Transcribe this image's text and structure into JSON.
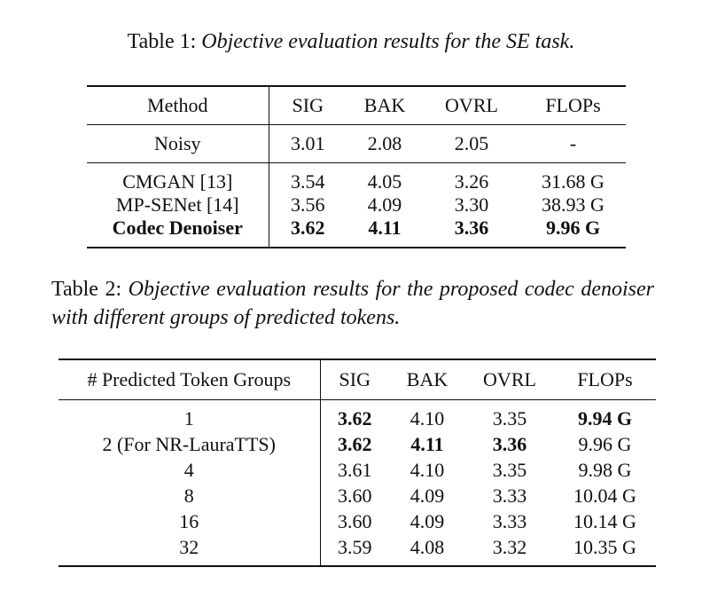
{
  "table1": {
    "caption_label": "Table 1: ",
    "caption_text": "Objective evaluation results for the SE task.",
    "headers": [
      "Method",
      "SIG",
      "BAK",
      "OVRL",
      "FLOPs"
    ],
    "noisy_row": [
      "Noisy",
      "3.01",
      "2.08",
      "2.05",
      "-"
    ],
    "rows": [
      [
        "CMGAN [13]",
        "3.54",
        "4.05",
        "3.26",
        "31.68 G"
      ],
      [
        "MP-SENet [14]",
        "3.56",
        "4.09",
        "3.30",
        "38.93 G"
      ],
      [
        "Codec Denoiser",
        "3.62",
        "4.11",
        "3.36",
        "9.96 G"
      ]
    ]
  },
  "table2": {
    "caption_label": "Table 2: ",
    "caption_text": "Objective evaluation results for the proposed codec denoiser with different groups of predicted tokens.",
    "headers": [
      "# Predicted Token Groups",
      "SIG",
      "BAK",
      "OVRL",
      "FLOPs"
    ],
    "rows": [
      [
        "1",
        "3.62",
        "4.10",
        "3.35",
        "9.94 G"
      ],
      [
        "2 (For NR-LauraTTS)",
        "3.62",
        "4.11",
        "3.36",
        "9.96 G"
      ],
      [
        "4",
        "3.61",
        "4.10",
        "3.35",
        "9.98 G"
      ],
      [
        "8",
        "3.60",
        "4.09",
        "3.33",
        "10.04 G"
      ],
      [
        "16",
        "3.60",
        "4.09",
        "3.33",
        "10.14 G"
      ],
      [
        "32",
        "3.59",
        "4.08",
        "3.32",
        "10.35 G"
      ]
    ]
  }
}
